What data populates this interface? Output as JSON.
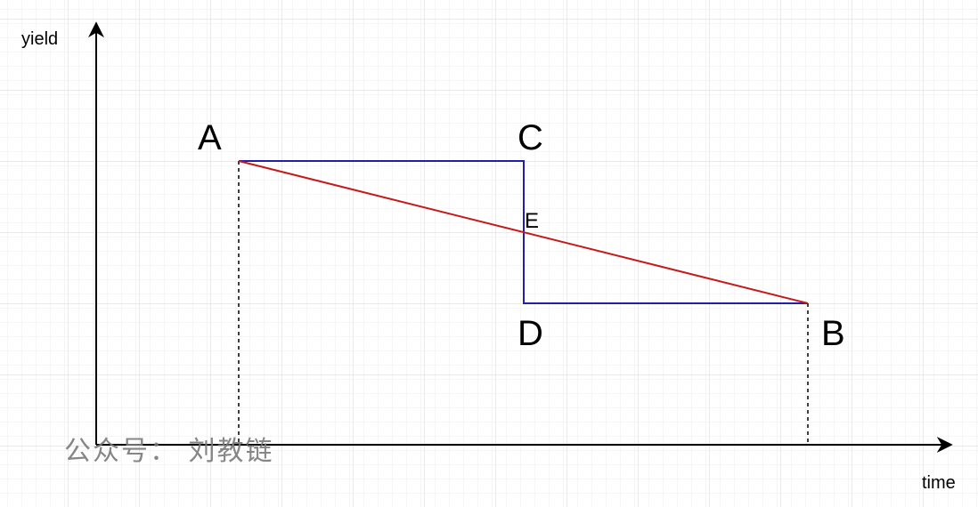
{
  "axes": {
    "y_label": "yield",
    "x_label": "time"
  },
  "points": {
    "A": "A",
    "B": "B",
    "C": "C",
    "D": "D",
    "E": "E"
  },
  "watermark": {
    "text": "公众号： 刘教链"
  },
  "colors": {
    "grid": "#e3e3e3",
    "axis": "#000000",
    "blue_path": "#1f1fae",
    "red_line": "#c41a1a",
    "dashed": "#000000",
    "watermark": "#7a7a7a"
  }
}
